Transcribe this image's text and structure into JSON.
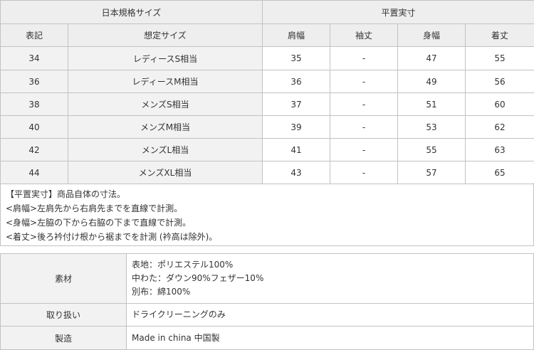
{
  "size_table": {
    "group_headers": [
      "日本規格サイズ",
      "平置実寸"
    ],
    "columns": [
      "表記",
      "想定サイズ",
      "肩幅",
      "袖丈",
      "身幅",
      "着丈"
    ],
    "rows": [
      [
        "34",
        "レディースS相当",
        "35",
        "-",
        "47",
        "55"
      ],
      [
        "36",
        "レディースM相当",
        "36",
        "-",
        "49",
        "56"
      ],
      [
        "38",
        "メンズS相当",
        "37",
        "-",
        "51",
        "60"
      ],
      [
        "40",
        "メンズM相当",
        "39",
        "-",
        "53",
        "62"
      ],
      [
        "42",
        "メンズL相当",
        "41",
        "-",
        "55",
        "63"
      ],
      [
        "44",
        "メンズXL相当",
        "43",
        "-",
        "57",
        "65"
      ]
    ]
  },
  "notes": [
    "【平置実寸】商品自体の寸法。",
    "<肩幅>左肩先から右肩先までを直線で計測。",
    "<身幅>左脇の下から右脇の下まで直線で計測。",
    "<着丈>後ろ衿付け根から裾までを計測 (衿高は除外)。"
  ],
  "material_table": [
    {
      "label": "素材",
      "lines": [
        "表地：ポリエステル100%",
        "中わた：ダウン90%フェザー10%",
        "別布：綿100%"
      ]
    },
    {
      "label": "取り扱い",
      "lines": [
        "ドライクリーニングのみ"
      ]
    },
    {
      "label": "製造",
      "lines": [
        "Made in china 中国製"
      ]
    }
  ]
}
